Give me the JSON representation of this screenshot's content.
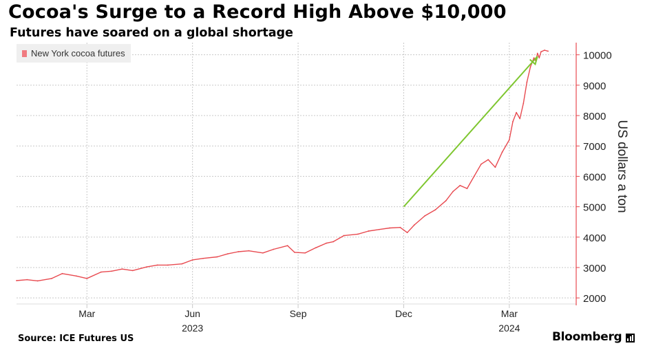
{
  "header": {
    "title": "Cocoa's Surge to a Record High Above $10,000",
    "subtitle": "Futures have soared on a global shortage"
  },
  "legend": {
    "label": "New York cocoa futures",
    "color": "#f07a80"
  },
  "footer": {
    "source": "Source: ICE Futures US",
    "brand": "Bloomberg"
  },
  "colors": {
    "series": "#e8494f",
    "axis": "#e8494f",
    "arrow": "#7ec62f",
    "grid": "#c8c8c8"
  },
  "chart_data": {
    "type": "line",
    "title": "Cocoa's Surge to a Record High Above $10,000",
    "subtitle": "Futures have soared on a global shortage",
    "xlabel": "",
    "ylabel": "US dollars a ton",
    "ylim": [
      1800,
      10400
    ],
    "yticks": [
      2000,
      3000,
      4000,
      5000,
      6000,
      7000,
      8000,
      9000,
      10000
    ],
    "x_range": [
      0,
      15.9
    ],
    "x_unit": "months since 2023-01-01",
    "xticks": [
      {
        "x": 2.0,
        "label": "Mar"
      },
      {
        "x": 5.0,
        "label": "Jun"
      },
      {
        "x": 8.0,
        "label": "Sep"
      },
      {
        "x": 11.0,
        "label": "Dec"
      },
      {
        "x": 14.0,
        "label": "Mar"
      }
    ],
    "year_labels": [
      {
        "x": 5.0,
        "label": "2023"
      },
      {
        "x": 14.0,
        "label": "2024"
      }
    ],
    "grid": true,
    "legend_position": "top-left",
    "series": [
      {
        "name": "New York cocoa futures",
        "x": [
          0.0,
          0.3,
          0.6,
          1.0,
          1.3,
          1.7,
          2.0,
          2.4,
          2.7,
          3.0,
          3.3,
          3.7,
          4.0,
          4.3,
          4.7,
          5.0,
          5.3,
          5.7,
          6.0,
          6.3,
          6.6,
          7.0,
          7.3,
          7.7,
          7.9,
          8.2,
          8.5,
          8.8,
          9.0,
          9.3,
          9.7,
          10.0,
          10.3,
          10.6,
          10.9,
          11.1,
          11.3,
          11.6,
          11.9,
          12.2,
          12.4,
          12.6,
          12.8,
          13.0,
          13.2,
          13.4,
          13.6,
          13.8,
          14.0,
          14.1,
          14.2,
          14.3,
          14.4,
          14.5,
          14.6,
          14.7,
          14.75,
          14.8,
          14.85,
          14.9,
          15.0,
          15.1
        ],
        "values": [
          2570,
          2600,
          2560,
          2640,
          2800,
          2720,
          2640,
          2850,
          2880,
          2950,
          2900,
          3020,
          3080,
          3080,
          3120,
          3250,
          3300,
          3350,
          3450,
          3520,
          3550,
          3480,
          3600,
          3720,
          3500,
          3480,
          3650,
          3800,
          3850,
          4050,
          4100,
          4200,
          4250,
          4300,
          4320,
          4150,
          4400,
          4700,
          4900,
          5200,
          5500,
          5700,
          5600,
          6000,
          6400,
          6550,
          6300,
          6800,
          7200,
          7800,
          8100,
          7900,
          8400,
          9100,
          9600,
          9900,
          9800,
          10050,
          9900,
          10100,
          10150,
          10120
        ]
      }
    ],
    "annotations": [
      {
        "type": "arrow",
        "from": {
          "x": 11.0,
          "y": 5000
        },
        "to": {
          "x": 14.8,
          "y": 9950
        }
      }
    ]
  }
}
